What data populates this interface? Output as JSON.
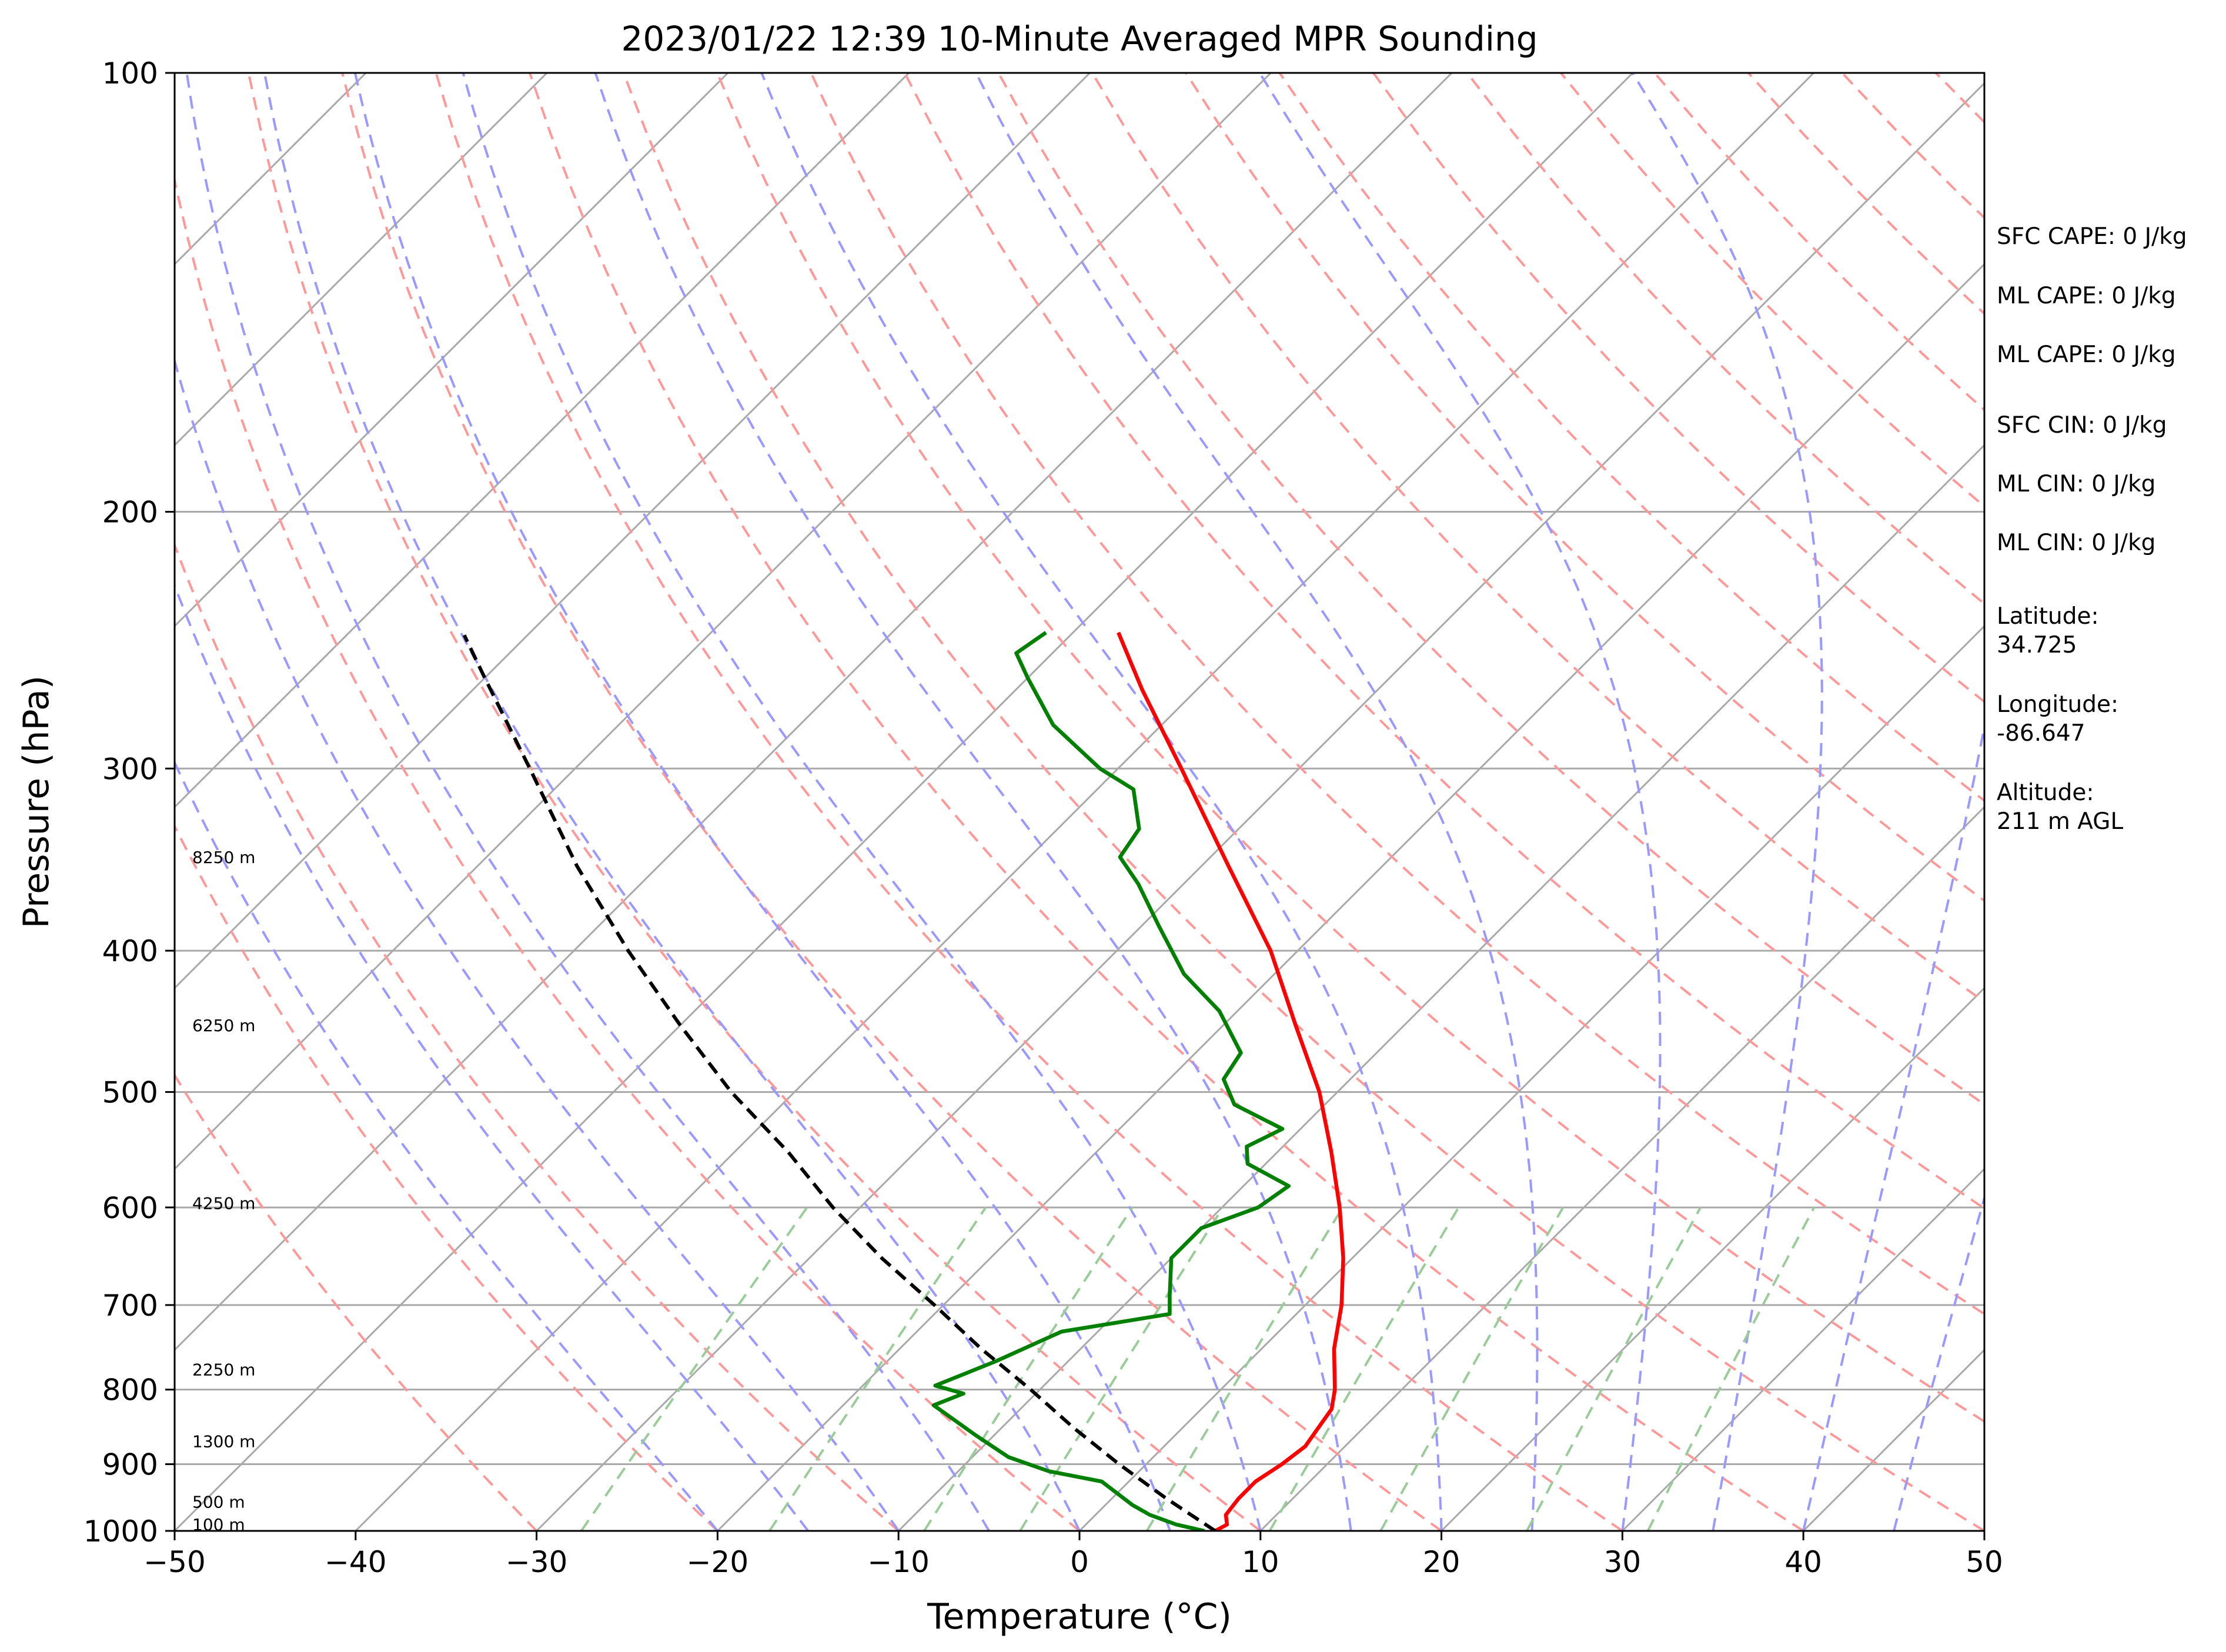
{
  "chart_data": {
    "type": "line",
    "title": "2023/01/22 12:39 10-Minute Averaged MPR Sounding",
    "xlabel": "Temperature (°C)",
    "ylabel": "Pressure (hPa)",
    "xlim": [
      -50,
      50
    ],
    "ylim": [
      1000,
      100
    ],
    "y_scale": "log",
    "skew": "skew-T log-P",
    "grid": true,
    "x_ticks": [
      "−50",
      "−40",
      "−30",
      "−20",
      "−10",
      "0",
      "10",
      "20",
      "30",
      "40",
      "50"
    ],
    "y_ticks": [
      "100",
      "200",
      "300",
      "400",
      "500",
      "600",
      "700",
      "800",
      "900",
      "1000"
    ],
    "series": [
      {
        "role": "temperature",
        "color": "#ff0000",
        "points": [
          {
            "p": 1000,
            "t": 7.5
          },
          {
            "p": 990,
            "t": 7.8
          },
          {
            "p": 975,
            "t": 7.2
          },
          {
            "p": 950,
            "t": 7.0
          },
          {
            "p": 925,
            "t": 7.0
          },
          {
            "p": 900,
            "t": 7.5
          },
          {
            "p": 875,
            "t": 7.8
          },
          {
            "p": 850,
            "t": 7.5
          },
          {
            "p": 825,
            "t": 7.2
          },
          {
            "p": 800,
            "t": 6.3
          },
          {
            "p": 750,
            "t": 4.0
          },
          {
            "p": 700,
            "t": 2.0
          },
          {
            "p": 650,
            "t": -0.5
          },
          {
            "p": 600,
            "t": -3.5
          },
          {
            "p": 550,
            "t": -7.0
          },
          {
            "p": 500,
            "t": -11.0
          },
          {
            "p": 450,
            "t": -16.0
          },
          {
            "p": 400,
            "t": -21.5
          },
          {
            "p": 350,
            "t": -28.5
          },
          {
            "p": 300,
            "t": -36.5
          },
          {
            "p": 265,
            "t": -43.0
          },
          {
            "p": 242,
            "t": -47.5
          }
        ]
      },
      {
        "role": "dewpoint",
        "color": "#008000",
        "points": [
          {
            "p": 1000,
            "t": 6.9
          },
          {
            "p": 990,
            "t": 5.0
          },
          {
            "p": 975,
            "t": 3.0
          },
          {
            "p": 960,
            "t": 1.5
          },
          {
            "p": 925,
            "t": -1.5
          },
          {
            "p": 910,
            "t": -5.0
          },
          {
            "p": 890,
            "t": -8.0
          },
          {
            "p": 860,
            "t": -11.0
          },
          {
            "p": 820,
            "t": -15.0
          },
          {
            "p": 805,
            "t": -14.0
          },
          {
            "p": 795,
            "t": -16.0
          },
          {
            "p": 765,
            "t": -14.0
          },
          {
            "p": 730,
            "t": -12.0
          },
          {
            "p": 710,
            "t": -7.0
          },
          {
            "p": 690,
            "t": -8.0
          },
          {
            "p": 650,
            "t": -10.0
          },
          {
            "p": 620,
            "t": -10.0
          },
          {
            "p": 600,
            "t": -8.0
          },
          {
            "p": 580,
            "t": -7.5
          },
          {
            "p": 560,
            "t": -11.0
          },
          {
            "p": 545,
            "t": -12.0
          },
          {
            "p": 530,
            "t": -11.0
          },
          {
            "p": 510,
            "t": -15.0
          },
          {
            "p": 490,
            "t": -17.0
          },
          {
            "p": 470,
            "t": -17.5
          },
          {
            "p": 440,
            "t": -21.0
          },
          {
            "p": 415,
            "t": -25.0
          },
          {
            "p": 385,
            "t": -29.0
          },
          {
            "p": 360,
            "t": -32.5
          },
          {
            "p": 345,
            "t": -35.0
          },
          {
            "p": 330,
            "t": -35.5
          },
          {
            "p": 310,
            "t": -38.0
          },
          {
            "p": 300,
            "t": -41.0
          },
          {
            "p": 280,
            "t": -46.0
          },
          {
            "p": 260,
            "t": -50.0
          },
          {
            "p": 250,
            "t": -52.0
          },
          {
            "p": 242,
            "t": -51.5
          }
        ]
      },
      {
        "role": "parcel-profile",
        "color": "#000000",
        "style": "dashed",
        "points": [
          {
            "p": 1000,
            "t": 7.5
          },
          {
            "p": 950,
            "t": 3.0
          },
          {
            "p": 900,
            "t": -1.5
          },
          {
            "p": 850,
            "t": -6.0
          },
          {
            "p": 800,
            "t": -10.5
          },
          {
            "p": 750,
            "t": -15.5
          },
          {
            "p": 700,
            "t": -20.5
          },
          {
            "p": 650,
            "t": -26.0
          },
          {
            "p": 600,
            "t": -31.5
          },
          {
            "p": 550,
            "t": -37.0
          },
          {
            "p": 500,
            "t": -43.5
          },
          {
            "p": 450,
            "t": -50.0
          },
          {
            "p": 400,
            "t": -57.0
          },
          {
            "p": 350,
            "t": -64.5
          },
          {
            "p": 300,
            "t": -72.5
          },
          {
            "p": 260,
            "t": -80.0
          },
          {
            "p": 243,
            "t": -83.5
          }
        ]
      }
    ],
    "background_lines": {
      "isotherms": {
        "color": "#a9a9a9",
        "style": "solid"
      },
      "dry_adiabats": {
        "color": "#ff9999",
        "style": "dashed"
      },
      "moist_adiabats": {
        "color": "#9999ff",
        "style": "dashed"
      },
      "mixing_ratio": {
        "color": "#99cc99",
        "style": "dashed"
      }
    },
    "height_labels": [
      {
        "p": 990,
        "text": "100 m"
      },
      {
        "p": 955,
        "text": "500 m"
      },
      {
        "p": 868,
        "text": "1300 m"
      },
      {
        "p": 775,
        "text": "2250 m"
      },
      {
        "p": 596,
        "text": "4250 m"
      },
      {
        "p": 450,
        "text": "6250 m"
      },
      {
        "p": 345,
        "text": "8250 m"
      }
    ],
    "annotations": {
      "sfc_cape": "SFC CAPE: 0 J/kg",
      "ml_cape_1": "ML CAPE: 0 J/kg",
      "ml_cape_2": "ML CAPE: 0 J/kg",
      "sfc_cin": "SFC CIN: 0 J/kg",
      "ml_cin_1": "ML CIN: 0 J/kg",
      "ml_cin_2": "ML CIN: 0 J/kg",
      "latitude_label": "Latitude:",
      "latitude_value": "34.725",
      "longitude_label": "Longitude:",
      "longitude_value": "-86.647",
      "altitude_label": "Altitude:",
      "altitude_value": "211 m AGL"
    }
  }
}
